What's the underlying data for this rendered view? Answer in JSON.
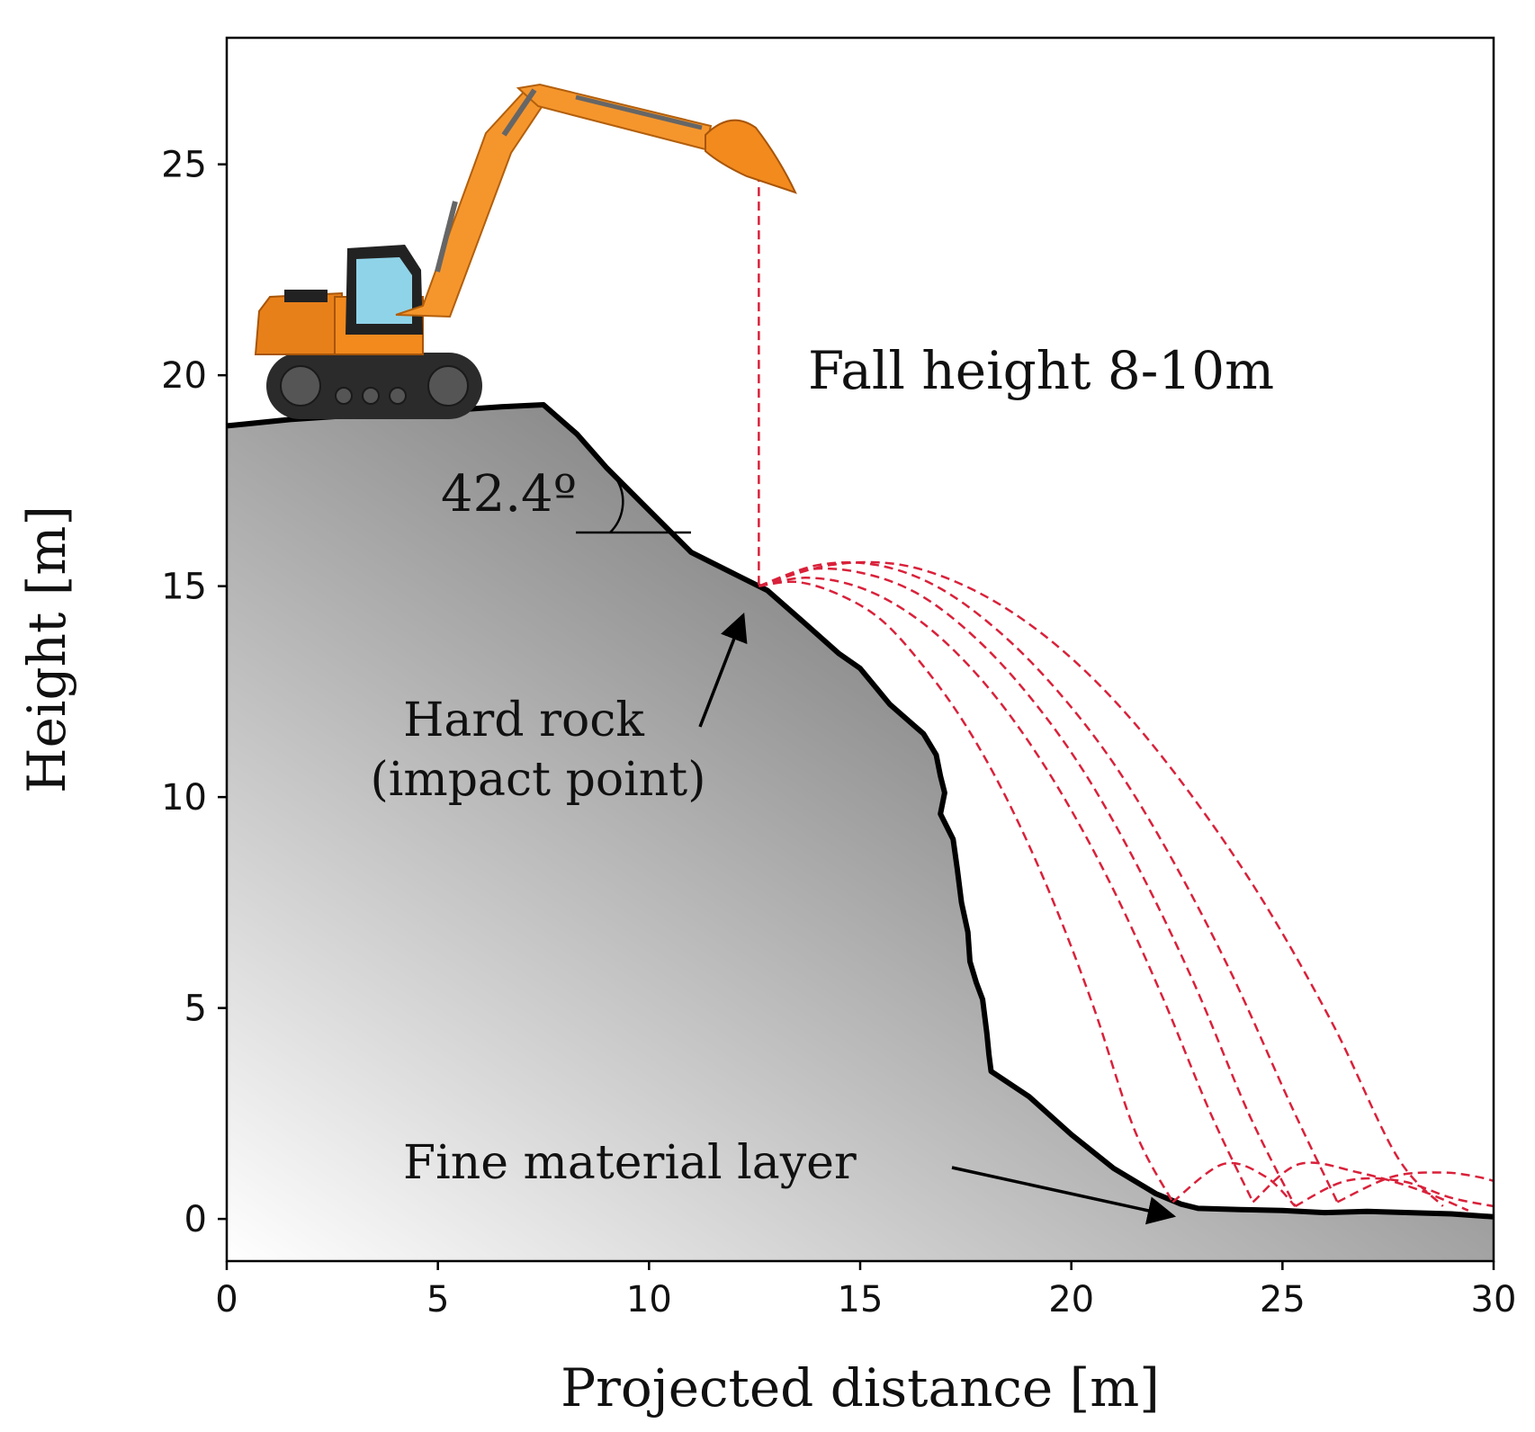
{
  "chart_data": {
    "type": "line",
    "title": "",
    "xlabel": "Projected distance [m]",
    "ylabel": "Height [m]",
    "xlim": [
      0,
      30
    ],
    "ylim": [
      -1,
      28
    ],
    "grid": false,
    "x_ticks": [
      {
        "value": 0,
        "label": "0"
      },
      {
        "value": 5,
        "label": "5"
      },
      {
        "value": 10,
        "label": "10"
      },
      {
        "value": 15,
        "label": "15"
      },
      {
        "value": 20,
        "label": "20"
      },
      {
        "value": 25,
        "label": "25"
      },
      {
        "value": 30,
        "label": "30"
      }
    ],
    "y_ticks": [
      {
        "value": 0,
        "label": "0"
      },
      {
        "value": 5,
        "label": "5"
      },
      {
        "value": 10,
        "label": "10"
      },
      {
        "value": 15,
        "label": "15"
      },
      {
        "value": 20,
        "label": "20"
      },
      {
        "value": 25,
        "label": "25"
      }
    ],
    "slope_profile": {
      "x": [
        0,
        0.5,
        1.5,
        3,
        5,
        6.5,
        7.5,
        8.3,
        9,
        10,
        11,
        12,
        12.8,
        13.6,
        14.5,
        15,
        15.7,
        16.5,
        16.8,
        16.9,
        17.0,
        16.9,
        17.2,
        17.3,
        17.4,
        17.55,
        17.6,
        17.75,
        17.9,
        18.0,
        18.05,
        18.1,
        19,
        20,
        21,
        22,
        22.6,
        23,
        24,
        25,
        26,
        27,
        28,
        29,
        30
      ],
      "y": [
        18.8,
        18.85,
        18.95,
        19.05,
        19.15,
        19.25,
        19.3,
        18.6,
        17.8,
        16.8,
        15.8,
        15.3,
        14.9,
        14.2,
        13.4,
        13.05,
        12.2,
        11.5,
        11.0,
        10.5,
        10.1,
        9.6,
        9.0,
        8.3,
        7.5,
        6.8,
        6.1,
        5.6,
        5.2,
        4.4,
        3.9,
        3.5,
        2.9,
        2.0,
        1.2,
        0.6,
        0.35,
        0.25,
        0.22,
        0.2,
        0.15,
        0.18,
        0.15,
        0.12,
        0.05
      ]
    },
    "series": [
      {
        "x": [
          12.6,
          12.6
        ],
        "y": [
          24.8,
          15.0
        ]
      },
      {
        "x": [
          12.6,
          13.5,
          14.5,
          15.5,
          16.5,
          17.5,
          18.5,
          19.5,
          20.5,
          21.5,
          22.4
        ],
        "y": [
          15.0,
          15.1,
          14.8,
          14.2,
          13.1,
          11.7,
          9.9,
          7.7,
          5.1,
          2.1,
          0.4
        ]
      },
      {
        "x": [
          12.6,
          13.7,
          14.9,
          16.1,
          17.3,
          18.5,
          19.7,
          20.9,
          22.1,
          23.3,
          24.3
        ],
        "y": [
          15.0,
          15.2,
          15.0,
          14.4,
          13.4,
          12.0,
          10.2,
          8.0,
          5.4,
          2.5,
          0.4
        ]
      },
      {
        "x": [
          12.6,
          13.8,
          15.1,
          16.4,
          17.7,
          19.0,
          20.3,
          21.6,
          22.9,
          24.2,
          25.3
        ],
        "y": [
          15.0,
          15.4,
          15.3,
          14.8,
          13.8,
          12.4,
          10.6,
          8.3,
          5.6,
          2.5,
          0.3
        ]
      },
      {
        "x": [
          12.6,
          14.0,
          15.4,
          16.8,
          18.2,
          19.6,
          21.0,
          22.4,
          23.8,
          25.2,
          26.3
        ],
        "y": [
          15.0,
          15.5,
          15.5,
          15.0,
          14.0,
          12.6,
          10.8,
          8.5,
          5.8,
          2.7,
          0.4
        ]
      },
      {
        "x": [
          12.6,
          14.3,
          16.0,
          17.7,
          19.4,
          21.1,
          22.8,
          24.5,
          26.2,
          27.7,
          28.8
        ],
        "y": [
          15.0,
          15.5,
          15.5,
          14.9,
          13.8,
          12.2,
          10.1,
          7.6,
          4.6,
          1.5,
          0.3
        ]
      },
      {
        "x": [
          24.3,
          25.4,
          26.8,
          28.2,
          29.4
        ],
        "y": [
          0.4,
          1.3,
          1.1,
          0.7,
          0.2
        ]
      },
      {
        "x": [
          25.3,
          26.5,
          27.8,
          29.0,
          30.0
        ],
        "y": [
          0.3,
          0.9,
          0.9,
          0.5,
          0.3
        ]
      },
      {
        "x": [
          26.3,
          27.6,
          28.8,
          29.6,
          30.0
        ],
        "y": [
          0.4,
          1.0,
          1.1,
          1.0,
          0.9
        ]
      },
      {
        "x": [
          22.4,
          23.6,
          24.6,
          25.3
        ],
        "y": [
          0.4,
          1.3,
          1.0,
          0.3
        ]
      }
    ],
    "annotations": {
      "fall_height": "Fall height 8-10m",
      "angle": "42.4º",
      "hard_rock_line1": "Hard rock",
      "hard_rock_line2": "(impact point)",
      "fine_layer": "Fine material layer"
    },
    "colors": {
      "trajectory": "#d9213a",
      "profile": "#000000",
      "rock_dark": "#5a5a5a",
      "rock_light": "#ffffff",
      "excavator_body": "#f28a1e",
      "excavator_arm": "#f5962d",
      "track": "#2b2b2b",
      "cab_glass": "#8fd3e8"
    }
  }
}
